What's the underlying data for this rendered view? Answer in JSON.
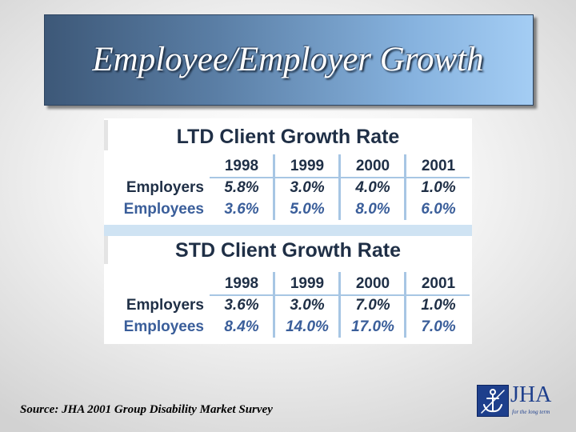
{
  "slide": {
    "title": "Employee/Employer Growth",
    "source": "Source: JHA 2001 Group Disability Market Survey"
  },
  "logo": {
    "name": "JHA",
    "tagline": "for the long term"
  },
  "tables": [
    {
      "title": "LTD Client Growth Rate",
      "years": [
        "1998",
        "1999",
        "2000",
        "2001"
      ],
      "rows": [
        {
          "label": "Employers",
          "values": [
            "5.8%",
            "3.0%",
            "4.0%",
            "1.0%"
          ]
        },
        {
          "label": "Employees",
          "values": [
            "3.6%",
            "5.0%",
            "8.0%",
            "6.0%"
          ]
        }
      ]
    },
    {
      "title": "STD Client Growth Rate",
      "years": [
        "1998",
        "1999",
        "2000",
        "2001"
      ],
      "rows": [
        {
          "label": "Employers",
          "values": [
            "3.6%",
            "3.0%",
            "7.0%",
            "1.0%"
          ]
        },
        {
          "label": "Employees",
          "values": [
            "8.4%",
            "14.0%",
            "17.0%",
            "7.0%"
          ]
        }
      ]
    }
  ],
  "colors": {
    "banner_dark": "#3d5878",
    "banner_light": "#a4cdf4",
    "employers_text": "#1f2f46",
    "employees_text": "#3a5e9a",
    "grid_lines": "#a7c6e4",
    "logo_blue": "#1e3f8c"
  }
}
